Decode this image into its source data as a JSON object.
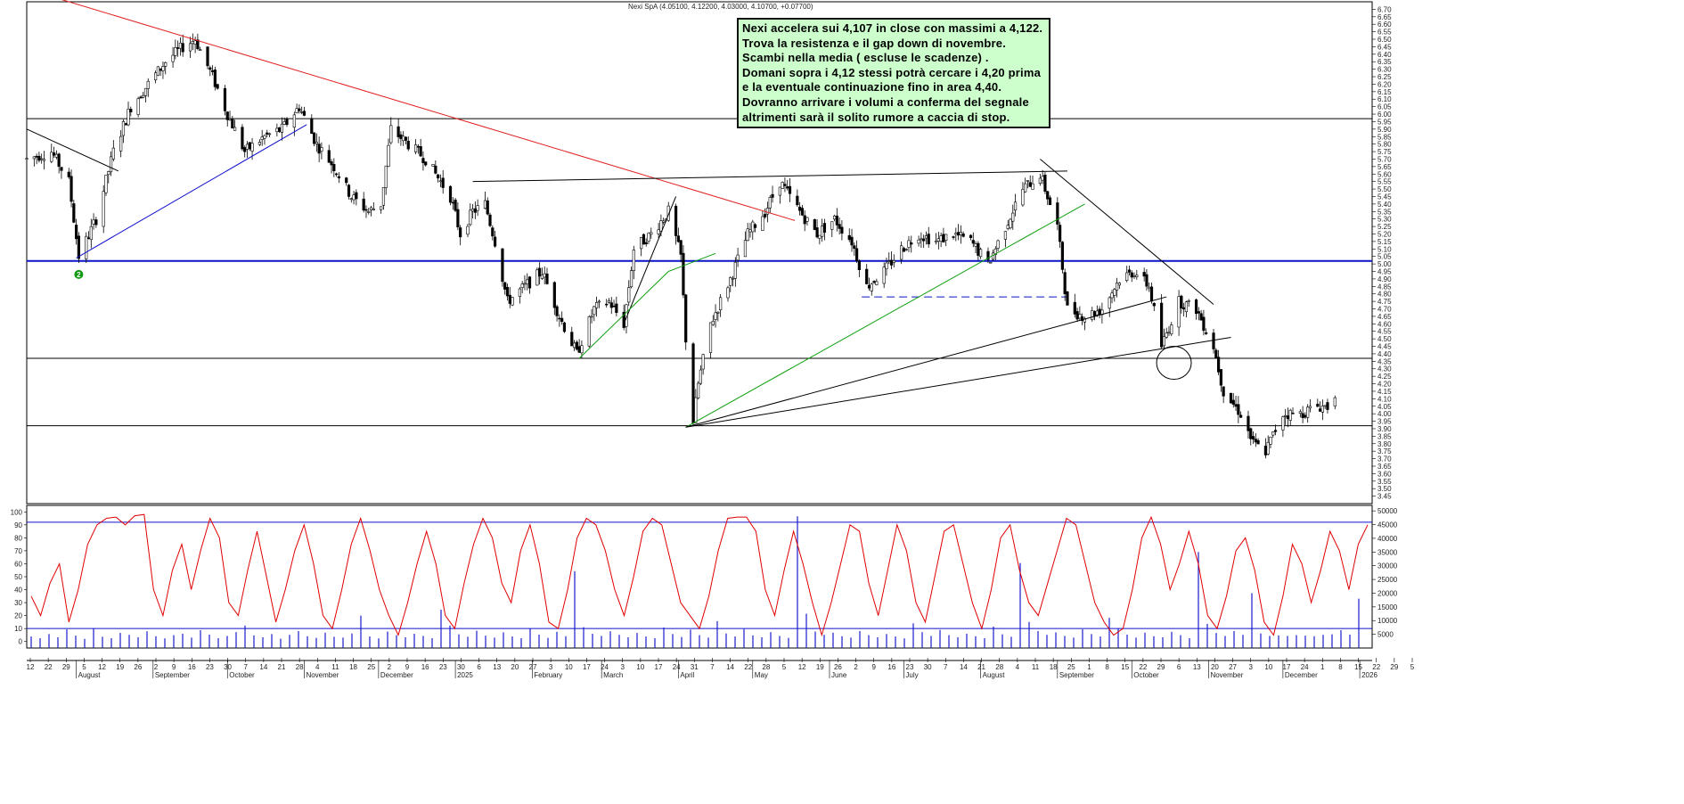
{
  "header": {
    "instrument": "Nexi SpA (4.05100, 4.12200, 4.03000, 4.10700, +0.07700)"
  },
  "annotation": {
    "lines": [
      "Nexi accelera sui 4,107 in close con massimi a 4,122.",
      "Trova la resistenza e il gap down di novembre.",
      "Scambi nella media ( escluse le scadenze) .",
      "Domani sopra i 4,12 stessi potrà cercare i 4,20 prima",
      "e la eventuale continuazione fino in area 4,40.",
      "Dovranno arrivare i volumi a conferma del segnale",
      "altrimenti sarà il solito rumore a caccia di stop."
    ]
  },
  "marker": {
    "label": "2",
    "color": "#119911"
  },
  "colors": {
    "candle": "#000000",
    "trend_red": "#e02020",
    "trend_blue": "#1010cc",
    "trend_green": "#10a010",
    "support": "#0a14c8",
    "oscillator": "#e00000",
    "volume": "#1a1acc"
  },
  "chart_data": [
    {
      "type": "candlestick",
      "title": "Nexi SpA",
      "y_axis_side": "right",
      "ylim": [
        3.4,
        6.75
      ],
      "y_ticks": [
        "3.45",
        "3.50",
        "3.55",
        "3.60",
        "3.65",
        "3.70",
        "3.75",
        "3.80",
        "3.85",
        "3.90",
        "3.95",
        "4.00",
        "4.05",
        "4.10",
        "4.15",
        "4.20",
        "4.25",
        "4.30",
        "4.35",
        "4.40",
        "4.45",
        "4.50",
        "4.55",
        "4.60",
        "4.65",
        "4.70",
        "4.75",
        "4.80",
        "4.85",
        "4.90",
        "4.95",
        "5.00",
        "5.05",
        "5.10",
        "5.15",
        "5.20",
        "5.25",
        "5.30",
        "5.35",
        "5.40",
        "5.45",
        "5.50",
        "5.55",
        "5.60",
        "5.65",
        "5.70",
        "5.75",
        "5.80",
        "5.85",
        "5.90",
        "5.95",
        "6.00",
        "6.05",
        "6.10",
        "6.15",
        "6.20",
        "6.25",
        "6.30",
        "6.35",
        "6.40",
        "6.45",
        "6.50",
        "6.55",
        "6.60",
        "6.65",
        "6.70"
      ],
      "x_day_ticks": [
        "12",
        "22",
        "29",
        "5",
        "12",
        "19",
        "26",
        "2",
        "9",
        "16",
        "23",
        "30",
        "7",
        "14",
        "21",
        "28",
        "4",
        "11",
        "18",
        "25",
        "2",
        "9",
        "16",
        "23",
        "30",
        "6",
        "13",
        "20",
        "27",
        "3",
        "10",
        "17",
        "24",
        "3",
        "10",
        "17",
        "24",
        "31",
        "7",
        "14",
        "22",
        "28",
        "5",
        "12",
        "19",
        "26",
        "2",
        "9",
        "16",
        "23",
        "30",
        "7",
        "14",
        "21",
        "28",
        "4",
        "11",
        "18",
        "25",
        "1",
        "8",
        "15",
        "22",
        "29",
        "6",
        "13",
        "20",
        "27",
        "3",
        "10",
        "17",
        "24",
        "1",
        "8",
        "15",
        "22",
        "29",
        "5"
      ],
      "x_month_labels": [
        "August",
        "September",
        "October",
        "November",
        "December",
        "2025",
        "February",
        "March",
        "April",
        "May",
        "June",
        "July",
        "August",
        "September",
        "October",
        "November",
        "December",
        "2026"
      ],
      "ohlc_path": [
        [
          "2024-07-12",
          5.7
        ],
        [
          "2024-07-22",
          5.75
        ],
        [
          "2024-07-29",
          5.55
        ],
        [
          "2024-08-02",
          5.05
        ],
        [
          "2024-08-09",
          5.3
        ],
        [
          "2024-08-16",
          5.75
        ],
        [
          "2024-08-23",
          6.05
        ],
        [
          "2024-08-30",
          6.2
        ],
        [
          "2024-09-06",
          6.35
        ],
        [
          "2024-09-13",
          6.45
        ],
        [
          "2024-09-18",
          6.5
        ],
        [
          "2024-09-25",
          6.25
        ],
        [
          "2024-10-01",
          6.0
        ],
        [
          "2024-10-08",
          5.75
        ],
        [
          "2024-10-16",
          5.85
        ],
        [
          "2024-10-23",
          5.9
        ],
        [
          "2024-10-30",
          6.05
        ],
        [
          "2024-11-06",
          5.8
        ],
        [
          "2024-11-13",
          5.65
        ],
        [
          "2024-11-20",
          5.45
        ],
        [
          "2024-11-27",
          5.35
        ],
        [
          "2024-12-02",
          5.4
        ],
        [
          "2024-12-06",
          5.9
        ],
        [
          "2024-12-13",
          5.8
        ],
        [
          "2024-12-20",
          5.7
        ],
        [
          "2024-12-30",
          5.45
        ],
        [
          "2025-01-03",
          5.2
        ],
        [
          "2025-01-08",
          5.35
        ],
        [
          "2025-01-13",
          5.4
        ],
        [
          "2025-01-17",
          5.15
        ],
        [
          "2025-01-22",
          4.75
        ],
        [
          "2025-01-29",
          4.85
        ],
        [
          "2025-02-05",
          4.95
        ],
        [
          "2025-02-12",
          4.65
        ],
        [
          "2025-02-19",
          4.4
        ],
        [
          "2025-02-26",
          4.7
        ],
        [
          "2025-03-04",
          4.75
        ],
        [
          "2025-03-10",
          4.6
        ],
        [
          "2025-03-14",
          5.1
        ],
        [
          "2025-03-21",
          5.2
        ],
        [
          "2025-03-28",
          5.35
        ],
        [
          "2025-04-02",
          5.05
        ],
        [
          "2025-04-04",
          4.5
        ],
        [
          "2025-04-07",
          3.95
        ],
        [
          "2025-04-09",
          4.2
        ],
        [
          "2025-04-14",
          4.6
        ],
        [
          "2025-04-22",
          4.9
        ],
        [
          "2025-04-29",
          5.2
        ],
        [
          "2025-05-06",
          5.35
        ],
        [
          "2025-05-12",
          5.55
        ],
        [
          "2025-05-20",
          5.35
        ],
        [
          "2025-05-27",
          5.2
        ],
        [
          "2025-06-03",
          5.3
        ],
        [
          "2025-06-10",
          5.15
        ],
        [
          "2025-06-16",
          4.85
        ],
        [
          "2025-06-23",
          4.95
        ],
        [
          "2025-06-30",
          5.1
        ],
        [
          "2025-07-07",
          5.2
        ],
        [
          "2025-07-14",
          5.15
        ],
        [
          "2025-07-21",
          5.2
        ],
        [
          "2025-07-28",
          5.15
        ],
        [
          "2025-08-04",
          5.0
        ],
        [
          "2025-08-11",
          5.25
        ],
        [
          "2025-08-18",
          5.5
        ],
        [
          "2025-08-25",
          5.6
        ],
        [
          "2025-09-01",
          5.25
        ],
        [
          "2025-09-05",
          4.7
        ],
        [
          "2025-09-12",
          4.65
        ],
        [
          "2025-09-19",
          4.7
        ],
        [
          "2025-09-26",
          4.9
        ],
        [
          "2025-10-02",
          4.95
        ],
        [
          "2025-10-08",
          4.85
        ],
        [
          "2025-10-13",
          4.45
        ],
        [
          "2025-10-20",
          4.75
        ],
        [
          "2025-10-27",
          4.7
        ],
        [
          "2025-11-03",
          4.45
        ],
        [
          "2025-11-07",
          4.15
        ],
        [
          "2025-11-14",
          4.0
        ],
        [
          "2025-11-19",
          3.8
        ],
        [
          "2025-11-24",
          3.75
        ],
        [
          "2025-12-01",
          4.0
        ],
        [
          "2025-12-08",
          4.0
        ],
        [
          "2025-12-15",
          4.05
        ],
        [
          "2025-12-19",
          4.05
        ],
        [
          "2025-12-22",
          4.11
        ]
      ],
      "last_candle": {
        "open": 4.051,
        "high": 4.122,
        "low": 4.03,
        "close": 4.107,
        "change": 0.077
      },
      "horizontal_levels": [
        {
          "value": 5.97,
          "color": "#000000"
        },
        {
          "value": 5.02,
          "color": "#0a14c8"
        },
        {
          "value": 4.37,
          "color": "#000000"
        },
        {
          "value": 3.92,
          "color": "#000000"
        },
        {
          "value": 4.78,
          "color": "#0a14c8",
          "style": "dashed",
          "from": "2025-06-14",
          "to": "2025-09-05"
        }
      ],
      "trendlines": [
        {
          "color": "#e02020",
          "from": [
            "2024-07-15",
            6.82
          ],
          "to": [
            "2025-05-18",
            5.29
          ]
        },
        {
          "color": "#1010cc",
          "from": [
            "2024-08-01",
            5.04
          ],
          "to": [
            "2024-11-02",
            5.93
          ]
        },
        {
          "color": "#000000",
          "from": [
            "2024-07-12",
            5.9
          ],
          "to": [
            "2024-08-18",
            5.62
          ]
        },
        {
          "color": "#000000",
          "from": [
            "2025-01-08",
            5.55
          ],
          "to": [
            "2025-09-05",
            5.62
          ]
        },
        {
          "color": "#000000",
          "from": [
            "2025-03-10",
            4.6
          ],
          "to": [
            "2025-03-31",
            5.45
          ]
        },
        {
          "color": "#10a010",
          "from": [
            "2025-02-20",
            4.37
          ],
          "to": [
            "2025-03-28",
            4.95
          ]
        },
        {
          "color": "#10a010",
          "from": [
            "2025-03-28",
            4.95
          ],
          "to": [
            "2025-04-16",
            5.07
          ]
        },
        {
          "color": "#10a010",
          "from": [
            "2025-04-04",
            3.91
          ],
          "to": [
            "2025-09-12",
            5.4
          ]
        },
        {
          "color": "#000000",
          "from": [
            "2025-04-04",
            3.91
          ],
          "to": [
            "2025-10-15",
            4.78
          ]
        },
        {
          "color": "#000000",
          "from": [
            "2025-04-04",
            3.91
          ],
          "to": [
            "2025-11-10",
            4.51
          ]
        },
        {
          "color": "#000000",
          "from": [
            "2025-08-25",
            5.7
          ],
          "to": [
            "2025-11-03",
            4.73
          ]
        }
      ],
      "highlight_ellipse": {
        "center": [
          "2025-10-18",
          4.34
        ],
        "rx_days": 7,
        "ry_value": 0.11
      }
    },
    {
      "type": "line",
      "title": "",
      "y_axis_side": "left",
      "ylim": [
        -5,
        105
      ],
      "y_ticks": [
        "0",
        "10",
        "20",
        "30",
        "40",
        "50",
        "60",
        "70",
        "80",
        "90",
        "100"
      ],
      "reference_lines": [
        92,
        10
      ],
      "series": [
        {
          "values": [
            35,
            20,
            45,
            60,
            15,
            40,
            75,
            90,
            95,
            96,
            90,
            97,
            98,
            40,
            20,
            55,
            75,
            40,
            70,
            95,
            80,
            30,
            20,
            55,
            85,
            50,
            15,
            40,
            70,
            90,
            60,
            20,
            10,
            40,
            75,
            95,
            70,
            40,
            20,
            5,
            30,
            60,
            85,
            60,
            20,
            10,
            45,
            75,
            95,
            80,
            45,
            30,
            70,
            90,
            60,
            15,
            10,
            40,
            80,
            95,
            90,
            70,
            40,
            20,
            50,
            85,
            95,
            90,
            60,
            30,
            20,
            10,
            35,
            70,
            95,
            96,
            96,
            85,
            40,
            20,
            55,
            85,
            60,
            30,
            5,
            30,
            60,
            90,
            85,
            45,
            20,
            55,
            90,
            70,
            30,
            15,
            50,
            85,
            90,
            60,
            30,
            10,
            40,
            80,
            90,
            55,
            30,
            20,
            45,
            70,
            95,
            90,
            60,
            30,
            15,
            5,
            10,
            40,
            80,
            96,
            75,
            40,
            60,
            85,
            60,
            20,
            10,
            35,
            70,
            80,
            55,
            15,
            5,
            35,
            75,
            60,
            30,
            55,
            85,
            70,
            40,
            75,
            90
          ]
        }
      ]
    },
    {
      "type": "bar",
      "title": "",
      "y_axis_side": "right",
      "ylim": [
        0,
        52000
      ],
      "y_ticks": [
        "5000",
        "10000",
        "15000",
        "20000",
        "25000",
        "30000",
        "35000",
        "40000",
        "45000",
        "50000"
      ],
      "series": [
        {
          "values": [
            4200,
            3600,
            5100,
            3900,
            6800,
            4500,
            3300,
            7200,
            4100,
            3600,
            5500,
            4800,
            3900,
            6100,
            4300,
            3500,
            4700,
            5200,
            3800,
            6500,
            4900,
            3600,
            4400,
            5800,
            8200,
            4600,
            3900,
            5100,
            3400,
            4800,
            6200,
            4300,
            3700,
            5600,
            4100,
            3800,
            5300,
            11800,
            4200,
            3500,
            6000,
            4700,
            3900,
            5200,
            4400,
            3600,
            14000,
            8200,
            5000,
            4100,
            6300,
            4500,
            3800,
            5700,
            4200,
            3600,
            7000,
            4900,
            3700,
            5900,
            4300,
            28000,
            7600,
            5200,
            4400,
            6100,
            4800,
            3900,
            5500,
            4200,
            3600,
            7500,
            5100,
            4000,
            6700,
            4700,
            3800,
            9800,
            5300,
            4200,
            6900,
            4600,
            3900,
            5800,
            4400,
            3700,
            48000,
            12500,
            6000,
            4800,
            5600,
            4300,
            3800,
            6200,
            4700,
            3900,
            5100,
            4200,
            3500,
            9000,
            5800,
            4400,
            6600,
            4700,
            3900,
            5200,
            4300,
            3600,
            7800,
            5000,
            4100,
            31000,
            9500,
            6200,
            4800,
            5700,
            4400,
            3800,
            6800,
            5100,
            4200,
            11000,
            7200,
            4900,
            3800,
            5600,
            4300,
            3900,
            5900,
            4700,
            3600,
            35000,
            8800,
            5500,
            4400,
            6200,
            4800,
            20000,
            5300,
            4400,
            4600,
            4400,
            4700,
            4500,
            4300,
            4800,
            5000,
            6500,
            4900,
            18000
          ]
        }
      ]
    }
  ]
}
